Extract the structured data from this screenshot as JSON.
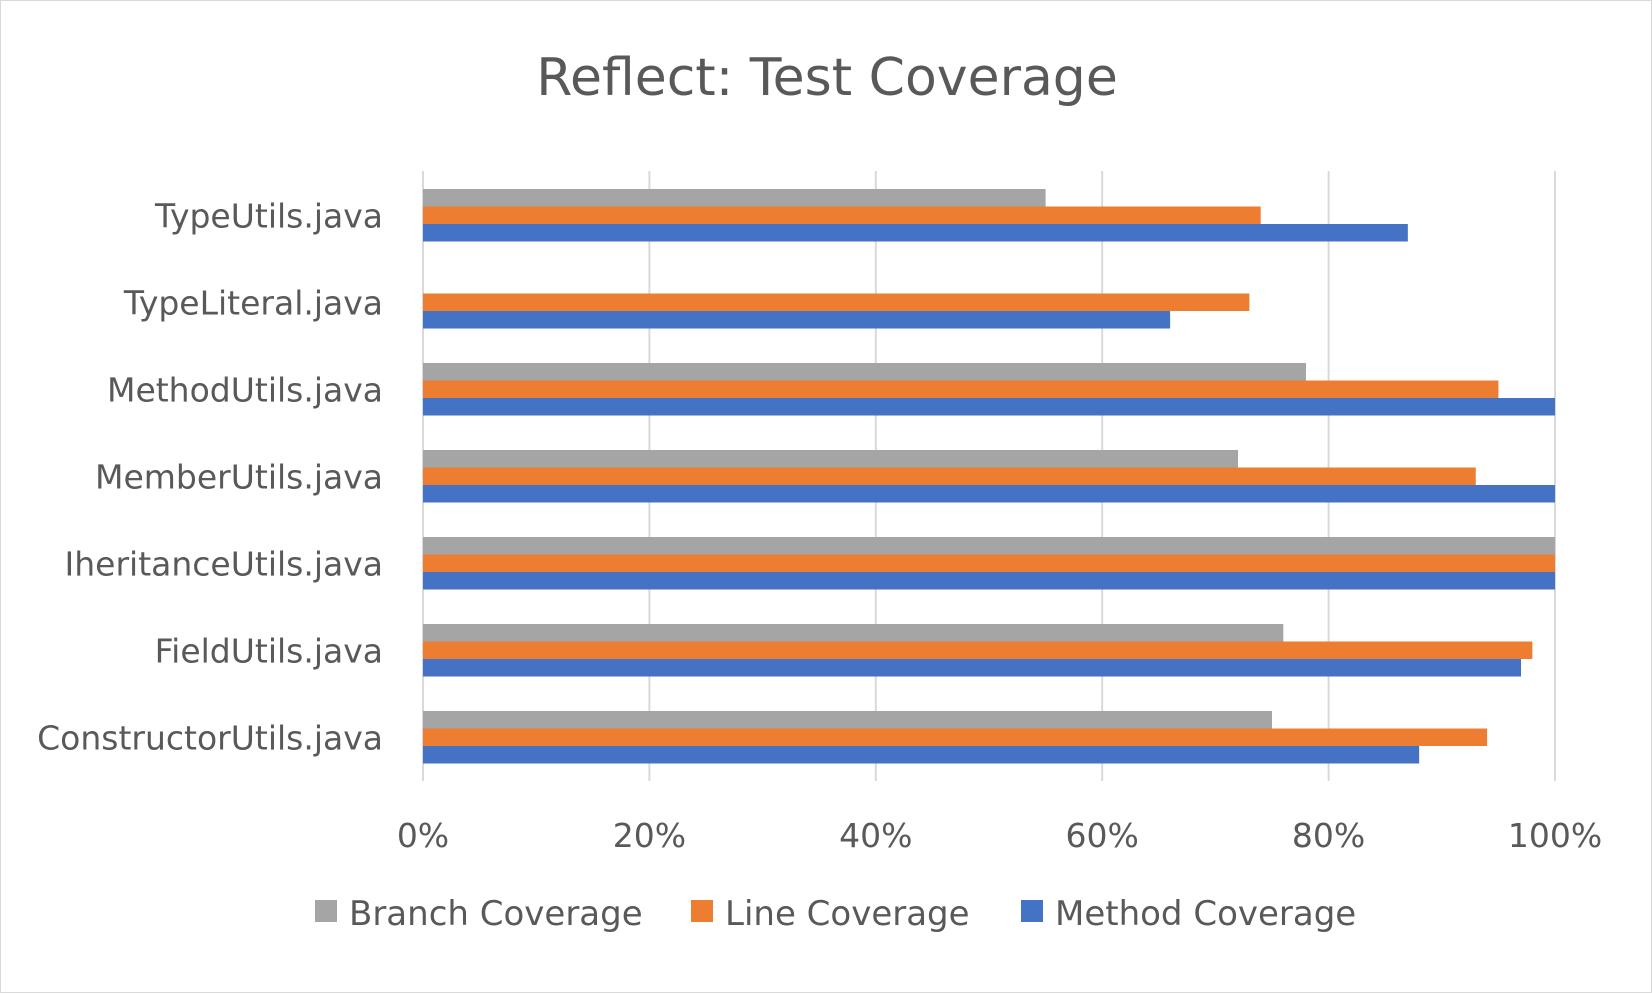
{
  "chart_data": {
    "type": "bar",
    "orientation": "horizontal",
    "title": "Reflect: Test Coverage",
    "xlabel": "",
    "ylabel": "",
    "categories": [
      "TypeUtils.java",
      "TypeLiteral.java",
      "MethodUtils.java",
      "MemberUtils.java",
      "IheritanceUtils.java",
      "FieldUtils.java",
      "ConstructorUtils.java"
    ],
    "series": [
      {
        "name": "Branch Coverage",
        "color": "#a5a5a5",
        "values": [
          55,
          null,
          78,
          72,
          100,
          76,
          75
        ]
      },
      {
        "name": "Line Coverage",
        "color": "#ed7d31",
        "values": [
          74,
          73,
          95,
          93,
          100,
          98,
          94
        ]
      },
      {
        "name": "Method Coverage",
        "color": "#4472c4",
        "values": [
          87,
          66,
          100,
          100,
          100,
          97,
          88
        ]
      }
    ],
    "xlim": [
      0,
      100
    ],
    "xticks": [
      "0%",
      "20%",
      "40%",
      "60%",
      "80%",
      "100%"
    ],
    "grid": true,
    "legend_position": "bottom"
  }
}
